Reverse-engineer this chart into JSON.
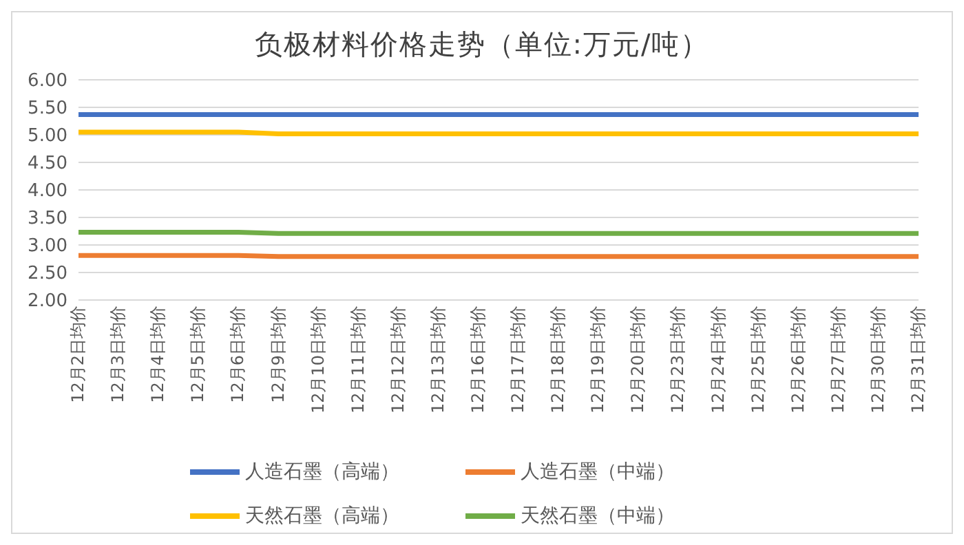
{
  "chart_data": {
    "type": "line",
    "title": "负极材料价格走势（单位:万元/吨）",
    "categories": [
      "12月2日均价",
      "12月3日均价",
      "12月4日均价",
      "12月5日均价",
      "12月6日均价",
      "12月9日均价",
      "12月10日均价",
      "12月11日均价",
      "12月12日均价",
      "12月13日均价",
      "12月16日均价",
      "12月17日均价",
      "12月18日均价",
      "12月19日均价",
      "12月20日均价",
      "12月23日均价",
      "12月24日均价",
      "12月25日均价",
      "12月26日均价",
      "12月27日均价",
      "12月30日均价",
      "12月31日均价"
    ],
    "series": [
      {
        "name": "人造石墨（高端）",
        "color": "#4472c4",
        "values": [
          5.37,
          5.37,
          5.37,
          5.37,
          5.37,
          5.37,
          5.37,
          5.37,
          5.37,
          5.37,
          5.37,
          5.37,
          5.37,
          5.37,
          5.37,
          5.37,
          5.37,
          5.37,
          5.37,
          5.37,
          5.37,
          5.37
        ]
      },
      {
        "name": "人造石墨（中端）",
        "color": "#ed7d31",
        "values": [
          2.81,
          2.81,
          2.81,
          2.81,
          2.81,
          2.79,
          2.79,
          2.79,
          2.79,
          2.79,
          2.79,
          2.79,
          2.79,
          2.79,
          2.79,
          2.79,
          2.79,
          2.79,
          2.79,
          2.79,
          2.79,
          2.79
        ]
      },
      {
        "name": "天然石墨（高端）",
        "color": "#ffc000",
        "values": [
          5.05,
          5.05,
          5.05,
          5.05,
          5.05,
          5.02,
          5.02,
          5.02,
          5.02,
          5.02,
          5.02,
          5.02,
          5.02,
          5.02,
          5.02,
          5.02,
          5.02,
          5.02,
          5.02,
          5.02,
          5.02,
          5.02
        ]
      },
      {
        "name": "天然石墨（中端）",
        "color": "#70ad47",
        "values": [
          3.23,
          3.23,
          3.23,
          3.23,
          3.23,
          3.21,
          3.21,
          3.21,
          3.21,
          3.21,
          3.21,
          3.21,
          3.21,
          3.21,
          3.21,
          3.21,
          3.21,
          3.21,
          3.21,
          3.21,
          3.21,
          3.21
        ]
      }
    ],
    "ylim": [
      2,
      6
    ],
    "yticks": [
      {
        "value": 2,
        "label": "2.00"
      },
      {
        "value": 2.5,
        "label": "2.50"
      },
      {
        "value": 3,
        "label": "3.00"
      },
      {
        "value": 3.5,
        "label": "3.50"
      },
      {
        "value": 4,
        "label": "4.00"
      },
      {
        "value": 4.5,
        "label": "4.50"
      },
      {
        "value": 5,
        "label": "5.00"
      },
      {
        "value": 5.5,
        "label": "5.50"
      },
      {
        "value": 6,
        "label": "6.00"
      }
    ],
    "grid": "y",
    "legend": "bottom",
    "marker": "none",
    "line_style": "solid"
  }
}
